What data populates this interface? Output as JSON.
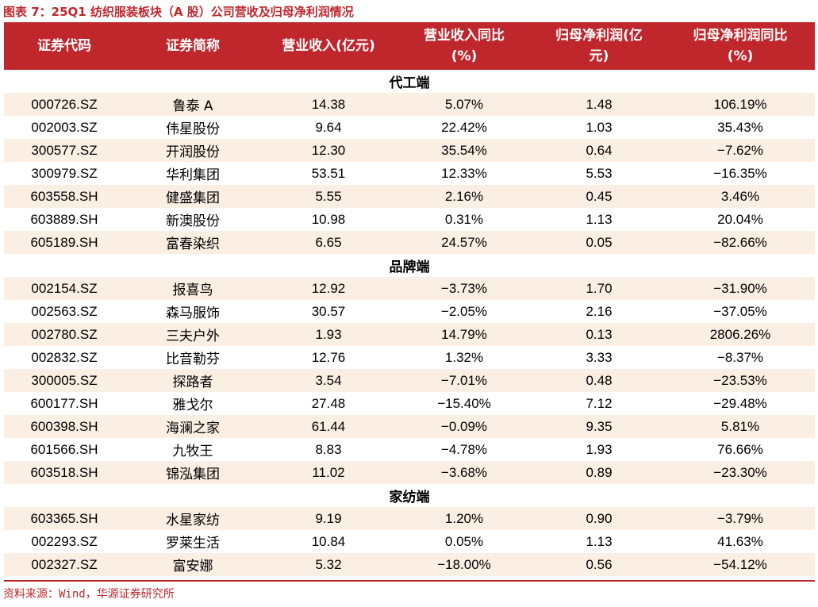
{
  "title": "图表 7：25Q1 纺织服装板块（A 股）公司营收及归母净利润情况",
  "columns": {
    "code": [
      "证券代码",
      ""
    ],
    "name": [
      "证券简称",
      ""
    ],
    "revenue": [
      "营业收入(亿元)",
      ""
    ],
    "revenue_yoy": [
      "营业收入同比",
      "(%)"
    ],
    "profit": [
      "归母净利润(亿",
      "元)"
    ],
    "profit_yoy": [
      "归母净利润同比",
      "(%)"
    ]
  },
  "sections": [
    {
      "name": "代工端",
      "rows": [
        [
          "000726.SZ",
          "鲁泰 A",
          "14.38",
          "5.07%",
          "1.48",
          "106.19%"
        ],
        [
          "002003.SZ",
          "伟星股份",
          "9.64",
          "22.42%",
          "1.03",
          "35.43%"
        ],
        [
          "300577.SZ",
          "开润股份",
          "12.30",
          "35.54%",
          "0.64",
          "−7.62%"
        ],
        [
          "300979.SZ",
          "华利集团",
          "53.51",
          "12.33%",
          "5.53",
          "−16.35%"
        ],
        [
          "603558.SH",
          "健盛集团",
          "5.55",
          "2.16%",
          "0.45",
          "3.46%"
        ],
        [
          "603889.SH",
          "新澳股份",
          "10.98",
          "0.31%",
          "1.13",
          "20.04%"
        ],
        [
          "605189.SH",
          "富春染织",
          "6.65",
          "24.57%",
          "0.05",
          "−82.66%"
        ]
      ]
    },
    {
      "name": "品牌端",
      "rows": [
        [
          "002154.SZ",
          "报喜鸟",
          "12.92",
          "−3.73%",
          "1.70",
          "−31.90%"
        ],
        [
          "002563.SZ",
          "森马服饰",
          "30.57",
          "−2.05%",
          "2.16",
          "−37.05%"
        ],
        [
          "002780.SZ",
          "三夫户外",
          "1.93",
          "14.79%",
          "0.13",
          "2806.26%"
        ],
        [
          "002832.SZ",
          "比音勒芬",
          "12.76",
          "1.32%",
          "3.33",
          "−8.37%"
        ],
        [
          "300005.SZ",
          "探路者",
          "3.54",
          "−7.01%",
          "0.48",
          "−23.53%"
        ],
        [
          "600177.SH",
          "雅戈尔",
          "27.48",
          "−15.40%",
          "7.12",
          "−29.48%"
        ],
        [
          "600398.SH",
          "海澜之家",
          "61.44",
          "−0.09%",
          "9.35",
          "5.81%"
        ],
        [
          "601566.SH",
          "九牧王",
          "8.83",
          "−4.78%",
          "1.93",
          "76.66%"
        ],
        [
          "603518.SH",
          "锦泓集团",
          "11.02",
          "−3.68%",
          "0.89",
          "−23.30%"
        ]
      ]
    },
    {
      "name": "家纺端",
      "rows": [
        [
          "603365.SH",
          "水星家纺",
          "9.19",
          "1.20%",
          "0.90",
          "−3.79%"
        ],
        [
          "002293.SZ",
          "罗莱生活",
          "10.84",
          "0.05%",
          "1.13",
          "41.63%"
        ],
        [
          "002327.SZ",
          "富安娜",
          "5.32",
          "−18.00%",
          "0.56",
          "−54.12%"
        ]
      ]
    }
  ],
  "source": "资料来源：Wind，华源证券研究所",
  "colors": {
    "accent": "#c0272d",
    "stripe": "#fbeee3",
    "header_text": "#ffffff"
  }
}
